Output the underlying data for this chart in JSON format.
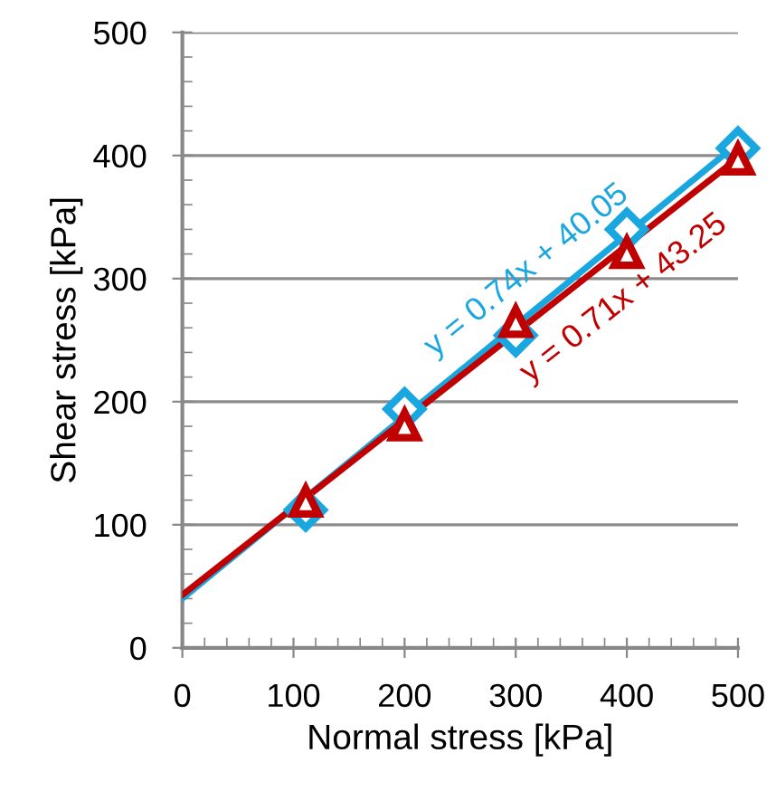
{
  "chart_data": {
    "type": "scatter",
    "xlabel": "Normal stress [kPa]",
    "ylabel": "Shear stress [kPa]",
    "xlim": [
      0,
      500
    ],
    "xticks": [
      0,
      100,
      200,
      300,
      400,
      500
    ],
    "ylim": [
      0,
      500
    ],
    "yticks": [
      0,
      100,
      200,
      300,
      400,
      500
    ],
    "grid": "y",
    "legend": false,
    "series": [
      {
        "type": "line",
        "name": "y = 0.74x + 40.05",
        "color": "#1aa7e0",
        "x": [
          0,
          500
        ],
        "values": [
          40,
          410
        ],
        "marker": "none",
        "line_style": "solid"
      },
      {
        "type": "line",
        "name": "y = 0.71x + 43.25",
        "color": "#c00000",
        "x": [
          0,
          500
        ],
        "values": [
          43,
          398
        ],
        "marker": "none",
        "line_style": "solid"
      },
      {
        "color": "#1aa7e0",
        "x": [
          111,
          200,
          300,
          400,
          500
        ],
        "values": [
          112,
          194,
          254,
          340,
          406
        ],
        "marker": "diamond"
      },
      {
        "color": "#c00000",
        "x": [
          111,
          200,
          300,
          400,
          500
        ],
        "values": [
          119,
          181,
          265,
          321,
          397
        ],
        "marker": "triangle"
      }
    ]
  }
}
